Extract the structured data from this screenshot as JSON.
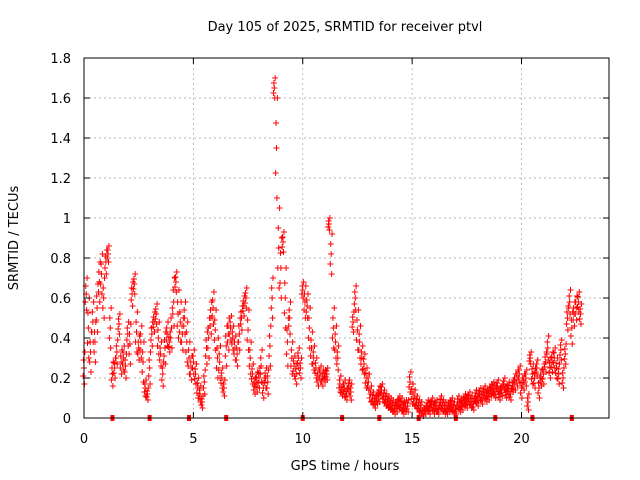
{
  "chart_data": {
    "type": "scatter",
    "title": "Day 105 of 2025, SRMTID for receiver ptvl",
    "xlabel": "GPS time / hours",
    "ylabel": "SRMTID / TECUs",
    "xlim": [
      0,
      24
    ],
    "ylim": [
      0,
      1.8
    ],
    "xticks": [
      0,
      5,
      10,
      15,
      20
    ],
    "xtick_labels": [
      "0",
      "5",
      "10",
      "15",
      "20"
    ],
    "yticks": [
      0,
      0.2,
      0.4,
      0.6,
      0.8,
      1,
      1.2,
      1.4,
      1.6,
      1.8
    ],
    "ytick_labels": [
      "0",
      "0.2",
      "0.4",
      "0.6",
      "0.8",
      "1",
      "1.2",
      "1.4",
      "1.6",
      "1.8"
    ],
    "grid": true,
    "marker": "+",
    "marker_color": "#ff0000",
    "series": [
      {
        "name": "SRMTID",
        "x": [
          0.0,
          0.1,
          0.2,
          0.3,
          0.4,
          0.5,
          0.6,
          0.7,
          0.8,
          0.9,
          1.0,
          1.1,
          1.2,
          1.3,
          1.4,
          1.5,
          1.6,
          1.7,
          1.8,
          1.9,
          2.0,
          2.1,
          2.2,
          2.3,
          2.4,
          2.5,
          2.6,
          2.7,
          2.8,
          2.9,
          3.0,
          3.1,
          3.2,
          3.3,
          3.4,
          3.5,
          3.6,
          3.7,
          3.8,
          3.9,
          4.0,
          4.1,
          4.2,
          4.3,
          4.4,
          4.5,
          4.6,
          4.7,
          4.8,
          4.9,
          5.0,
          5.1,
          5.2,
          5.3,
          5.4,
          5.5,
          5.6,
          5.7,
          5.8,
          5.9,
          6.0,
          6.1,
          6.2,
          6.3,
          6.4,
          6.5,
          6.6,
          6.7,
          6.8,
          6.9,
          7.0,
          7.1,
          7.2,
          7.3,
          7.4,
          7.5,
          7.6,
          7.7,
          7.8,
          7.9,
          8.0,
          8.1,
          8.2,
          8.3,
          8.4,
          8.5,
          8.6,
          8.7,
          8.8,
          8.9,
          9.0,
          9.1,
          9.2,
          9.3,
          9.4,
          9.5,
          9.6,
          9.7,
          9.8,
          9.9,
          10.0,
          10.1,
          10.2,
          10.3,
          10.4,
          10.5,
          10.6,
          10.7,
          10.8,
          10.9,
          11.0,
          11.1,
          11.2,
          11.3,
          11.4,
          11.5,
          11.6,
          11.7,
          11.8,
          11.9,
          12.0,
          12.1,
          12.2,
          12.3,
          12.4,
          12.5,
          12.6,
          12.7,
          12.8,
          12.9,
          13.0,
          13.1,
          13.2,
          13.3,
          13.4,
          13.5,
          13.6,
          13.7,
          13.8,
          13.9,
          14.0,
          14.1,
          14.2,
          14.3,
          14.4,
          14.5,
          14.6,
          14.7,
          14.8,
          14.9,
          15.0,
          15.1,
          15.2,
          15.3,
          15.4,
          15.5,
          15.6,
          15.7,
          15.8,
          15.9,
          16.0,
          16.1,
          16.2,
          16.3,
          16.4,
          16.5,
          16.6,
          16.7,
          16.8,
          16.9,
          17.0,
          17.1,
          17.2,
          17.3,
          17.4,
          17.5,
          17.6,
          17.7,
          17.8,
          17.9,
          18.0,
          18.1,
          18.2,
          18.3,
          18.4,
          18.5,
          18.6,
          18.7,
          18.8,
          18.9,
          19.0,
          19.1,
          19.2,
          19.3,
          19.4,
          19.5,
          19.6,
          19.7,
          19.8,
          19.9,
          20.0,
          20.1,
          20.2,
          20.3,
          20.4,
          20.5,
          20.6,
          20.7,
          20.8,
          20.9,
          21.0,
          21.1,
          21.2,
          21.3,
          21.4,
          21.5,
          21.6,
          21.7,
          21.8,
          21.9,
          22.0,
          22.1,
          22.2,
          22.3,
          22.4,
          22.5,
          22.6,
          22.7
        ],
        "y": [
          0.25,
          0.62,
          0.45,
          0.33,
          0.48,
          0.38,
          0.55,
          0.68,
          0.72,
          0.6,
          0.78,
          0.82,
          0.45,
          0.22,
          0.25,
          0.33,
          0.47,
          0.28,
          0.3,
          0.26,
          0.42,
          0.37,
          0.62,
          0.67,
          0.43,
          0.35,
          0.38,
          0.28,
          0.15,
          0.12,
          0.25,
          0.42,
          0.48,
          0.52,
          0.4,
          0.32,
          0.22,
          0.35,
          0.42,
          0.38,
          0.45,
          0.58,
          0.68,
          0.52,
          0.48,
          0.42,
          0.5,
          0.38,
          0.3,
          0.25,
          0.28,
          0.22,
          0.15,
          0.12,
          0.08,
          0.18,
          0.35,
          0.4,
          0.5,
          0.55,
          0.44,
          0.3,
          0.28,
          0.2,
          0.15,
          0.36,
          0.42,
          0.45,
          0.4,
          0.35,
          0.32,
          0.42,
          0.5,
          0.56,
          0.6,
          0.44,
          0.3,
          0.22,
          0.16,
          0.18,
          0.2,
          0.26,
          0.15,
          0.2,
          0.18,
          0.36,
          0.6,
          1.65,
          1.35,
          0.85,
          0.75,
          0.88,
          0.6,
          0.38,
          0.5,
          0.3,
          0.26,
          0.22,
          0.3,
          0.25,
          0.64,
          0.58,
          0.56,
          0.45,
          0.35,
          0.3,
          0.25,
          0.2,
          0.22,
          0.2,
          0.21,
          0.22,
          0.97,
          0.82,
          0.45,
          0.38,
          0.3,
          0.17,
          0.14,
          0.15,
          0.12,
          0.16,
          0.13,
          0.48,
          0.6,
          0.44,
          0.38,
          0.3,
          0.27,
          0.2,
          0.18,
          0.12,
          0.1,
          0.08,
          0.1,
          0.12,
          0.14,
          0.11,
          0.09,
          0.08,
          0.07,
          0.06,
          0.05,
          0.06,
          0.08,
          0.07,
          0.05,
          0.06,
          0.06,
          0.18,
          0.12,
          0.1,
          0.08,
          0.06,
          0.05,
          0.03,
          0.04,
          0.06,
          0.05,
          0.07,
          0.05,
          0.06,
          0.04,
          0.08,
          0.06,
          0.05,
          0.04,
          0.06,
          0.07,
          0.05,
          0.04,
          0.08,
          0.06,
          0.07,
          0.09,
          0.08,
          0.1,
          0.08,
          0.07,
          0.11,
          0.09,
          0.12,
          0.1,
          0.13,
          0.11,
          0.12,
          0.14,
          0.15,
          0.13,
          0.16,
          0.12,
          0.14,
          0.17,
          0.13,
          0.15,
          0.12,
          0.16,
          0.18,
          0.2,
          0.22,
          0.15,
          0.18,
          0.2,
          0.08,
          0.3,
          0.22,
          0.2,
          0.25,
          0.15,
          0.2,
          0.22,
          0.28,
          0.35,
          0.25,
          0.28,
          0.3,
          0.25,
          0.22,
          0.34,
          0.2,
          0.32,
          0.5,
          0.58,
          0.45,
          0.52,
          0.55,
          0.58,
          0.52
        ],
        "y_spread": [
          0.08,
          0.08,
          0.15,
          0.1,
          0.1,
          0.1,
          0.12,
          0.1,
          0.1,
          0.1,
          0.06,
          0.04,
          0.1,
          0.06,
          0.05,
          0.06,
          0.05,
          0.06,
          0.06,
          0.06,
          0.06,
          0.1,
          0.06,
          0.05,
          0.1,
          0.06,
          0.08,
          0.1,
          0.04,
          0.03,
          0.08,
          0.06,
          0.05,
          0.05,
          0.08,
          0.06,
          0.06,
          0.08,
          0.06,
          0.05,
          0.1,
          0.12,
          0.05,
          0.12,
          0.1,
          0.08,
          0.08,
          0.1,
          0.08,
          0.06,
          0.06,
          0.05,
          0.05,
          0.04,
          0.03,
          0.06,
          0.08,
          0.1,
          0.08,
          0.08,
          0.1,
          0.1,
          0.08,
          0.05,
          0.04,
          0.1,
          0.08,
          0.06,
          0.06,
          0.06,
          0.06,
          0.08,
          0.06,
          0.05,
          0.05,
          0.1,
          0.08,
          0.05,
          0.04,
          0.05,
          0.05,
          0.08,
          0.05,
          0.05,
          0.06,
          0.1,
          0.1,
          0.05,
          0.25,
          0.2,
          0.15,
          0.05,
          0.15,
          0.12,
          0.08,
          0.08,
          0.05,
          0.05,
          0.05,
          0.05,
          0.04,
          0.08,
          0.06,
          0.1,
          0.08,
          0.06,
          0.05,
          0.04,
          0.04,
          0.04,
          0.03,
          0.03,
          0.03,
          0.1,
          0.1,
          0.08,
          0.06,
          0.04,
          0.03,
          0.04,
          0.03,
          0.03,
          0.04,
          0.05,
          0.06,
          0.1,
          0.08,
          0.06,
          0.05,
          0.05,
          0.04,
          0.04,
          0.03,
          0.03,
          0.03,
          0.04,
          0.03,
          0.03,
          0.03,
          0.03,
          0.03,
          0.03,
          0.03,
          0.03,
          0.03,
          0.03,
          0.03,
          0.03,
          0.03,
          0.05,
          0.05,
          0.04,
          0.03,
          0.03,
          0.03,
          0.02,
          0.02,
          0.03,
          0.03,
          0.03,
          0.03,
          0.03,
          0.02,
          0.03,
          0.03,
          0.03,
          0.02,
          0.03,
          0.03,
          0.03,
          0.02,
          0.03,
          0.03,
          0.03,
          0.03,
          0.03,
          0.03,
          0.03,
          0.03,
          0.03,
          0.03,
          0.03,
          0.03,
          0.03,
          0.03,
          0.03,
          0.03,
          0.03,
          0.03,
          0.03,
          0.03,
          0.03,
          0.03,
          0.03,
          0.03,
          0.03,
          0.03,
          0.04,
          0.04,
          0.04,
          0.05,
          0.04,
          0.04,
          0.04,
          0.03,
          0.05,
          0.05,
          0.04,
          0.05,
          0.04,
          0.05,
          0.05,
          0.06,
          0.05,
          0.05,
          0.05,
          0.05,
          0.05,
          0.05,
          0.05,
          0.05,
          0.06,
          0.06,
          0.08,
          0.06,
          0.06,
          0.05,
          0.05
        ]
      }
    ],
    "baseline_markers_x": [
      1.3,
      3.0,
      4.8,
      6.5,
      10.0,
      11.8,
      13.5,
      15.3,
      17.0,
      18.8,
      20.5,
      22.3
    ],
    "baseline_markers_y": 0
  }
}
